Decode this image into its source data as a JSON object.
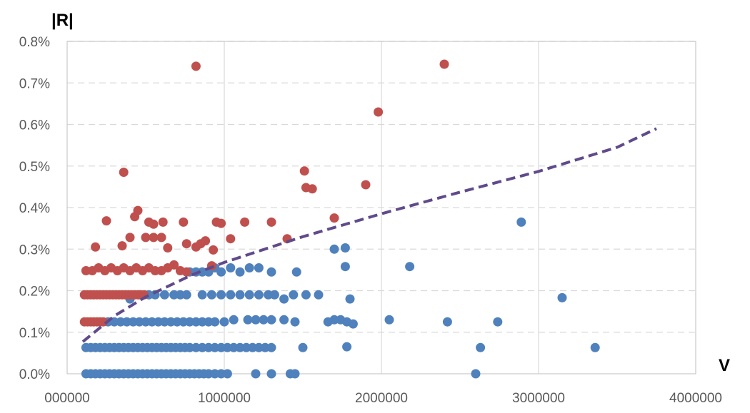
{
  "chart_data": {
    "type": "scatter",
    "title": "",
    "xlabel": "V",
    "ylabel": "|R|",
    "xlim": [
      0,
      4000000
    ],
    "ylim": [
      0,
      0.008
    ],
    "grid": true,
    "legend": "none",
    "x_ticks": [
      0,
      1000000,
      2000000,
      3000000,
      4000000
    ],
    "x_tick_labels": [
      "000000",
      "1000000",
      "2000000",
      "3000000",
      "4000000"
    ],
    "y_ticks": [
      0,
      0.001,
      0.002,
      0.003,
      0.004,
      0.005,
      0.006,
      0.007,
      0.008
    ],
    "y_tick_labels": [
      "0.0%",
      "0.1%",
      "0.2%",
      "0.3%",
      "0.4%",
      "0.5%",
      "0.6%",
      "0.7%",
      "0.8%"
    ],
    "series": [
      {
        "color": "#4f81bd",
        "points": [
          [
            120000,
            0
          ],
          [
            150000,
            0
          ],
          [
            180000,
            0
          ],
          [
            210000,
            0
          ],
          [
            240000,
            0
          ],
          [
            270000,
            0
          ],
          [
            300000,
            0
          ],
          [
            330000,
            0
          ],
          [
            360000,
            0
          ],
          [
            390000,
            0
          ],
          [
            420000,
            0
          ],
          [
            450000,
            0
          ],
          [
            480000,
            0
          ],
          [
            510000,
            0
          ],
          [
            540000,
            0
          ],
          [
            570000,
            0
          ],
          [
            600000,
            0
          ],
          [
            630000,
            0
          ],
          [
            660000,
            0
          ],
          [
            690000,
            0
          ],
          [
            720000,
            0
          ],
          [
            750000,
            0
          ],
          [
            780000,
            0
          ],
          [
            810000,
            0
          ],
          [
            840000,
            0
          ],
          [
            870000,
            0
          ],
          [
            900000,
            0
          ],
          [
            940000,
            0
          ],
          [
            980000,
            0
          ],
          [
            1020000,
            0
          ],
          [
            1200000,
            0
          ],
          [
            1300000,
            0
          ],
          [
            1420000,
            0
          ],
          [
            1450000,
            0
          ],
          [
            2600000,
            0
          ],
          [
            120000,
            0.00063
          ],
          [
            150000,
            0.00063
          ],
          [
            180000,
            0.00063
          ],
          [
            210000,
            0.00063
          ],
          [
            240000,
            0.00063
          ],
          [
            270000,
            0.00063
          ],
          [
            300000,
            0.00063
          ],
          [
            330000,
            0.00063
          ],
          [
            360000,
            0.00063
          ],
          [
            390000,
            0.00063
          ],
          [
            420000,
            0.00063
          ],
          [
            450000,
            0.00063
          ],
          [
            480000,
            0.00063
          ],
          [
            510000,
            0.00063
          ],
          [
            540000,
            0.00063
          ],
          [
            570000,
            0.00063
          ],
          [
            600000,
            0.00063
          ],
          [
            630000,
            0.00063
          ],
          [
            660000,
            0.00063
          ],
          [
            690000,
            0.00063
          ],
          [
            720000,
            0.00063
          ],
          [
            750000,
            0.00063
          ],
          [
            780000,
            0.00063
          ],
          [
            820000,
            0.00063
          ],
          [
            860000,
            0.00063
          ],
          [
            900000,
            0.00063
          ],
          [
            940000,
            0.00063
          ],
          [
            980000,
            0.00063
          ],
          [
            1020000,
            0.00063
          ],
          [
            1060000,
            0.00063
          ],
          [
            1100000,
            0.00063
          ],
          [
            1140000,
            0.00063
          ],
          [
            1180000,
            0.00063
          ],
          [
            1220000,
            0.00063
          ],
          [
            1260000,
            0.00063
          ],
          [
            1300000,
            0.00063
          ],
          [
            1500000,
            0.00063
          ],
          [
            1780000,
            0.00065
          ],
          [
            2630000,
            0.00063
          ],
          [
            3360000,
            0.00063
          ],
          [
            260000,
            0.00125
          ],
          [
            300000,
            0.00125
          ],
          [
            340000,
            0.00125
          ],
          [
            380000,
            0.00125
          ],
          [
            420000,
            0.00125
          ],
          [
            460000,
            0.00125
          ],
          [
            500000,
            0.00125
          ],
          [
            540000,
            0.00125
          ],
          [
            580000,
            0.00125
          ],
          [
            620000,
            0.00125
          ],
          [
            660000,
            0.00125
          ],
          [
            700000,
            0.00125
          ],
          [
            740000,
            0.00125
          ],
          [
            780000,
            0.00125
          ],
          [
            820000,
            0.00125
          ],
          [
            860000,
            0.00125
          ],
          [
            900000,
            0.00125
          ],
          [
            940000,
            0.00125
          ],
          [
            1000000,
            0.00125
          ],
          [
            1060000,
            0.0013
          ],
          [
            1150000,
            0.0013
          ],
          [
            1200000,
            0.0013
          ],
          [
            1250000,
            0.0013
          ],
          [
            1300000,
            0.0013
          ],
          [
            1380000,
            0.0013
          ],
          [
            1450000,
            0.00125
          ],
          [
            1660000,
            0.00125
          ],
          [
            1700000,
            0.0013
          ],
          [
            1740000,
            0.0013
          ],
          [
            1780000,
            0.00125
          ],
          [
            1820000,
            0.0012
          ],
          [
            2050000,
            0.0013
          ],
          [
            2420000,
            0.00125
          ],
          [
            2740000,
            0.00125
          ],
          [
            400000,
            0.0018
          ],
          [
            460000,
            0.0019
          ],
          [
            520000,
            0.0019
          ],
          [
            560000,
            0.0019
          ],
          [
            620000,
            0.0019
          ],
          [
            680000,
            0.0019
          ],
          [
            720000,
            0.0019
          ],
          [
            760000,
            0.0019
          ],
          [
            860000,
            0.0019
          ],
          [
            920000,
            0.0019
          ],
          [
            980000,
            0.0019
          ],
          [
            1040000,
            0.0019
          ],
          [
            1100000,
            0.0019
          ],
          [
            1160000,
            0.0019
          ],
          [
            1220000,
            0.0019
          ],
          [
            1280000,
            0.0019
          ],
          [
            1320000,
            0.0019
          ],
          [
            1380000,
            0.0018
          ],
          [
            1440000,
            0.0019
          ],
          [
            1520000,
            0.0019
          ],
          [
            1600000,
            0.0019
          ],
          [
            1800000,
            0.0018
          ],
          [
            3150000,
            0.00183
          ],
          [
            780000,
            0.00245
          ],
          [
            820000,
            0.00245
          ],
          [
            860000,
            0.00245
          ],
          [
            900000,
            0.00245
          ],
          [
            940000,
            0.00255
          ],
          [
            980000,
            0.00245
          ],
          [
            1040000,
            0.00255
          ],
          [
            1100000,
            0.00245
          ],
          [
            1160000,
            0.00255
          ],
          [
            1220000,
            0.00255
          ],
          [
            1300000,
            0.00245
          ],
          [
            1460000,
            0.00245
          ],
          [
            1770000,
            0.00258
          ],
          [
            2180000,
            0.00258
          ],
          [
            1700000,
            0.003
          ],
          [
            1770000,
            0.00303
          ],
          [
            2890000,
            0.00365
          ]
        ]
      },
      {
        "color": "#c0504d",
        "points": [
          [
            110000,
            0.00125
          ],
          [
            130000,
            0.00125
          ],
          [
            150000,
            0.00125
          ],
          [
            170000,
            0.00125
          ],
          [
            190000,
            0.00125
          ],
          [
            210000,
            0.00125
          ],
          [
            230000,
            0.00125
          ],
          [
            110000,
            0.0019
          ],
          [
            130000,
            0.0019
          ],
          [
            150000,
            0.0019
          ],
          [
            170000,
            0.0019
          ],
          [
            190000,
            0.0019
          ],
          [
            210000,
            0.0019
          ],
          [
            230000,
            0.0019
          ],
          [
            250000,
            0.0019
          ],
          [
            270000,
            0.0019
          ],
          [
            290000,
            0.0019
          ],
          [
            310000,
            0.0019
          ],
          [
            330000,
            0.0019
          ],
          [
            350000,
            0.0019
          ],
          [
            370000,
            0.0019
          ],
          [
            390000,
            0.0019
          ],
          [
            410000,
            0.0019
          ],
          [
            430000,
            0.0019
          ],
          [
            450000,
            0.0019
          ],
          [
            470000,
            0.0019
          ],
          [
            490000,
            0.0019
          ],
          [
            120000,
            0.00248
          ],
          [
            160000,
            0.00248
          ],
          [
            200000,
            0.00255
          ],
          [
            240000,
            0.00248
          ],
          [
            280000,
            0.00255
          ],
          [
            320000,
            0.00248
          ],
          [
            360000,
            0.00255
          ],
          [
            400000,
            0.00248
          ],
          [
            440000,
            0.00255
          ],
          [
            480000,
            0.00248
          ],
          [
            520000,
            0.00255
          ],
          [
            560000,
            0.00248
          ],
          [
            600000,
            0.00248
          ],
          [
            640000,
            0.00255
          ],
          [
            680000,
            0.00262
          ],
          [
            720000,
            0.00248
          ],
          [
            760000,
            0.00245
          ],
          [
            920000,
            0.0026
          ],
          [
            180000,
            0.00305
          ],
          [
            250000,
            0.00368
          ],
          [
            350000,
            0.00308
          ],
          [
            400000,
            0.00328
          ],
          [
            430000,
            0.00378
          ],
          [
            450000,
            0.00393
          ],
          [
            500000,
            0.00328
          ],
          [
            520000,
            0.00365
          ],
          [
            550000,
            0.0036
          ],
          [
            550000,
            0.00328
          ],
          [
            600000,
            0.00328
          ],
          [
            610000,
            0.00365
          ],
          [
            640000,
            0.00303
          ],
          [
            740000,
            0.00365
          ],
          [
            760000,
            0.00313
          ],
          [
            820000,
            0.00305
          ],
          [
            850000,
            0.00313
          ],
          [
            880000,
            0.0032
          ],
          [
            930000,
            0.00298
          ],
          [
            950000,
            0.00365
          ],
          [
            980000,
            0.00362
          ],
          [
            1040000,
            0.00325
          ],
          [
            1130000,
            0.00365
          ],
          [
            1300000,
            0.00365
          ],
          [
            1400000,
            0.00325
          ],
          [
            1700000,
            0.00375
          ],
          [
            360000,
            0.00485
          ],
          [
            820000,
            0.0074
          ],
          [
            1510000,
            0.00488
          ],
          [
            1520000,
            0.00448
          ],
          [
            1560000,
            0.00445
          ],
          [
            1900000,
            0.00455
          ],
          [
            1980000,
            0.0063
          ],
          [
            2400000,
            0.00745
          ]
        ]
      },
      {
        "type": "line",
        "style": "dashed",
        "color": "#604a8b",
        "points": [
          [
            100000,
            0.00077
          ],
          [
            300000,
            0.00139
          ],
          [
            500000,
            0.00185
          ],
          [
            800000,
            0.00239
          ],
          [
            1000000,
            0.00268
          ],
          [
            1500000,
            0.0033
          ],
          [
            2000000,
            0.00385
          ],
          [
            2500000,
            0.00437
          ],
          [
            3000000,
            0.00487
          ],
          [
            3500000,
            0.00545
          ],
          [
            3750000,
            0.0059
          ]
        ]
      }
    ]
  }
}
